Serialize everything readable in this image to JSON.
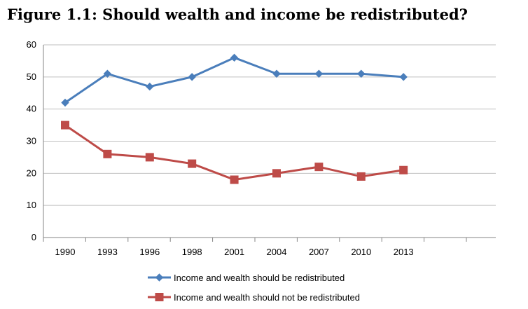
{
  "chart_data": {
    "type": "line",
    "title": "Figure 1.1: Should wealth and income be redistributed?",
    "categories": [
      "1990",
      "1993",
      "1996",
      "1998",
      "2001",
      "2004",
      "2007",
      "2010",
      "2013"
    ],
    "ylim": [
      0,
      60
    ],
    "yticks": [
      "0",
      "10",
      "20",
      "30",
      "40",
      "50",
      "60"
    ],
    "grid": true,
    "legend_position": "bottom",
    "series": [
      {
        "name": "Income and wealth should be redistributed",
        "values": [
          42,
          51,
          47,
          50,
          56,
          51,
          51,
          51,
          50
        ],
        "color": "#4a7ebb",
        "marker": "diamond"
      },
      {
        "name": "Income and wealth should not be redistributed",
        "values": [
          35,
          26,
          25,
          23,
          18,
          20,
          22,
          19,
          21
        ],
        "color": "#be4b48",
        "marker": "square"
      }
    ]
  }
}
